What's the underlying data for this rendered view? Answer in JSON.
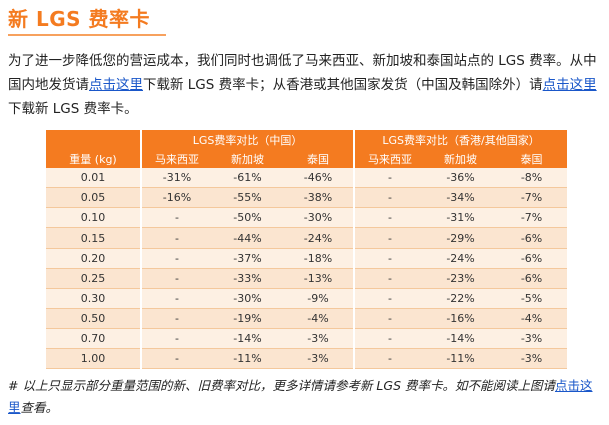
{
  "page": {
    "title": "新 LGS 费率卡",
    "intro": {
      "part1": "为了进一步降低您的营运成本，我们同时也调低了马来西亚、新加坡和泰国站点的 LGS 费率。从中国内地发货请",
      "link1": "点击这里",
      "part2": "下载新 LGS 费率卡；从香港或其他国家发货（中国及韩国除外）请",
      "link2": "点击这里",
      "part3": "下载新 LGS 费率卡。"
    }
  },
  "table": {
    "group_china": "LGS费率对比（中国）",
    "group_hk": "LGS费率对比（香港/其他国家）",
    "col_weight": "重量 (kg)",
    "columns": [
      "马来西亚",
      "新加坡",
      "泰国",
      "马来西亚",
      "新加坡",
      "泰国"
    ],
    "rows": [
      [
        "0.01",
        "-31%",
        "-61%",
        "-46%",
        "-",
        "-36%",
        "-8%"
      ],
      [
        "0.05",
        "-16%",
        "-55%",
        "-38%",
        "-",
        "-34%",
        "-7%"
      ],
      [
        "0.10",
        "-",
        "-50%",
        "-30%",
        "-",
        "-31%",
        "-7%"
      ],
      [
        "0.15",
        "-",
        "-44%",
        "-24%",
        "-",
        "-29%",
        "-6%"
      ],
      [
        "0.20",
        "-",
        "-37%",
        "-18%",
        "-",
        "-24%",
        "-6%"
      ],
      [
        "0.25",
        "-",
        "-33%",
        "-13%",
        "-",
        "-23%",
        "-6%"
      ],
      [
        "0.30",
        "-",
        "-30%",
        "-9%",
        "-",
        "-22%",
        "-5%"
      ],
      [
        "0.50",
        "-",
        "-19%",
        "-4%",
        "-",
        "-16%",
        "-4%"
      ],
      [
        "0.70",
        "-",
        "-14%",
        "-3%",
        "-",
        "-14%",
        "-3%"
      ],
      [
        "1.00",
        "-",
        "-11%",
        "-3%",
        "-",
        "-11%",
        "-3%"
      ]
    ]
  },
  "footnote": {
    "text": "# 以上只显示部分重量范围的新、旧费率对比，更多详情请参考新 LGS 费率卡。如不能阅读上图请",
    "link": "点击这里",
    "after": "查看。"
  },
  "colors": {
    "accent": "#f47b20",
    "link": "#1a57c9",
    "row_odd": "#fdf0e3",
    "row_even": "#fbe5d0"
  }
}
